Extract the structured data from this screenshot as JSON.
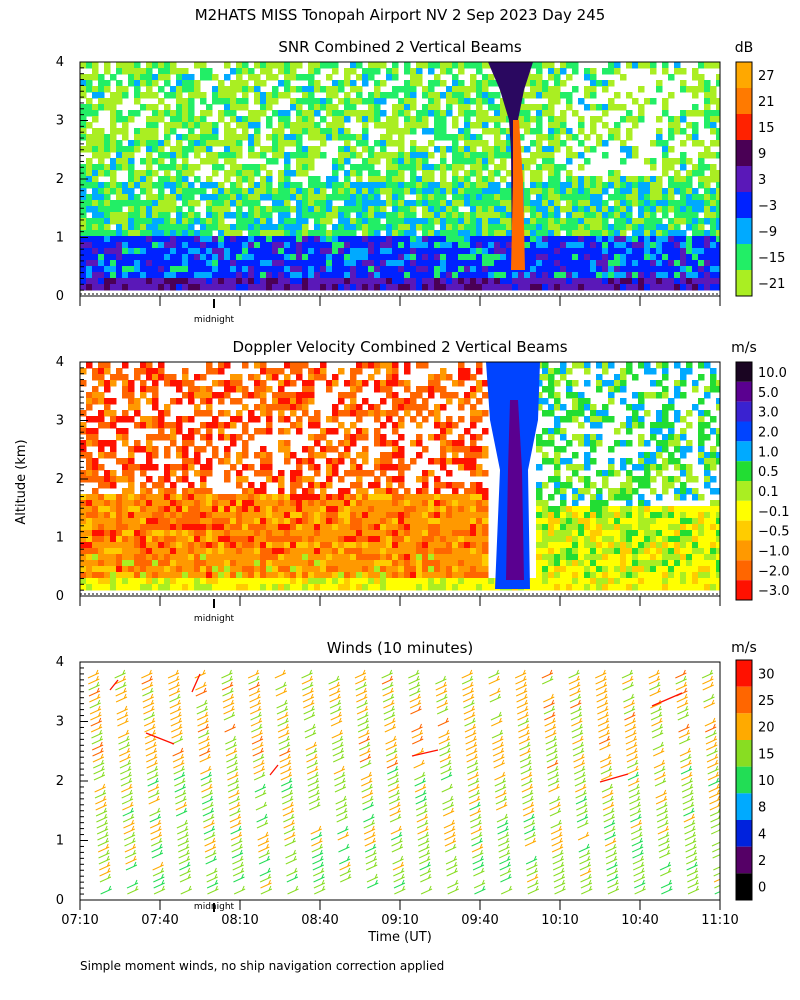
{
  "figure": {
    "title": "M2HATS MISS Tonopah Airport NV   2 Sep 2023 Day 245",
    "ylabel": "Altitude (km)",
    "xlabel": "Time (UT)",
    "midnight_label": "midnight",
    "footnote": "Simple moment winds, no ship navigation correction applied"
  },
  "chart_data": [
    {
      "type": "heatmap",
      "title": "SNR Combined 2 Vertical Beams",
      "ylabel": "Altitude (km)",
      "ylim": [
        0,
        4
      ],
      "yticks": [
        0,
        1,
        2,
        3,
        4
      ],
      "xlim": [
        "07:10",
        "11:10"
      ],
      "colorbar": {
        "unit": "dB",
        "labels": [
          "27",
          "21",
          "15",
          "9",
          "3",
          "−3",
          "−9",
          "−15",
          "−21"
        ],
        "colors": [
          "#FFA800",
          "#FF7A00",
          "#FF2200",
          "#4A0055",
          "#5A18B8",
          "#0022FF",
          "#00AAFF",
          "#22EE66",
          "#AAEE22"
        ]
      }
    },
    {
      "type": "heatmap",
      "title": "Doppler Velocity Combined 2 Vertical Beams",
      "ylabel": "Altitude (km)",
      "ylim": [
        0,
        4
      ],
      "yticks": [
        0,
        1,
        2,
        3,
        4
      ],
      "xlim": [
        "07:10",
        "11:10"
      ],
      "colorbar": {
        "unit": "m/s",
        "labels": [
          "10.0",
          "5.0",
          "3.0",
          "2.0",
          "1.0",
          "0.5",
          "0.1",
          "−0.1",
          "−0.5",
          "−1.0",
          "−2.0",
          "−3.0"
        ],
        "colors": [
          "#1A0522",
          "#5A0090",
          "#3A22D0",
          "#0044FF",
          "#00AAFF",
          "#22DD33",
          "#AAEE22",
          "#FFFF00",
          "#FFCC00",
          "#FF9900",
          "#FF6600",
          "#FF1100"
        ]
      }
    },
    {
      "type": "scatter",
      "title": "Winds (10 minutes)",
      "ylabel": "Altitude (km)",
      "xlabel": "Time (UT)",
      "ylim": [
        0,
        4
      ],
      "yticks": [
        0,
        1,
        2,
        3,
        4
      ],
      "xticks": [
        "07:10",
        "07:40",
        "08:10",
        "08:40",
        "09:10",
        "09:40",
        "10:10",
        "10:40",
        "11:10"
      ],
      "colorbar": {
        "unit": "m/s",
        "labels": [
          "30",
          "25",
          "20",
          "15",
          "10",
          "8",
          "4",
          "2",
          "0"
        ],
        "colors": [
          "#FF1100",
          "#FF6600",
          "#FFAA00",
          "#88DD22",
          "#22DD55",
          "#00AAFF",
          "#0022DD",
          "#550066",
          "#000000"
        ]
      }
    }
  ],
  "colors": {
    "snr_blue": "#0022FF",
    "snr_dark": "#2A0860",
    "snr_core": "#FF6A00",
    "doppler_warm": "#FF8800",
    "doppler_yellow": "#FFEE00"
  }
}
